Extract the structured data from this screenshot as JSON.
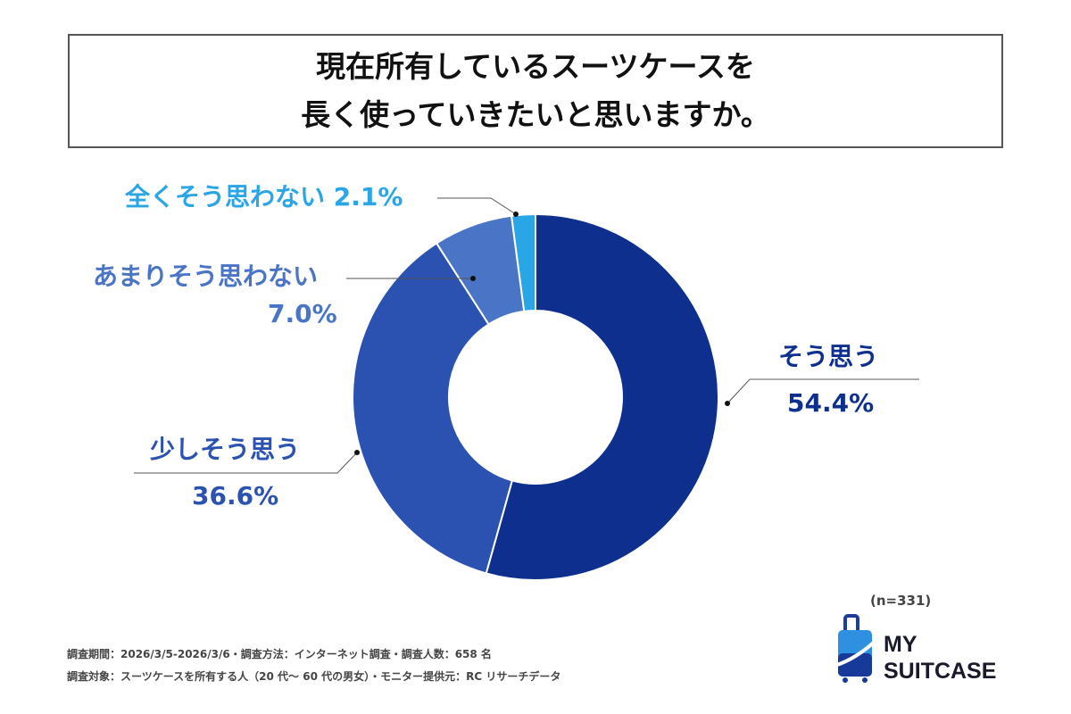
{
  "chart_data": {
    "type": "pie",
    "donut": true,
    "title_lines": [
      "現在所有しているスーツケースを",
      "長く使っていきたいと思いますか。"
    ],
    "slices": [
      {
        "label": "そう思う",
        "value": 54.4,
        "value_label": "54.4%",
        "color": "#0f2f8f"
      },
      {
        "label": "少しそう思う",
        "value": 36.6,
        "value_label": "36.6%",
        "color": "#2b52b1"
      },
      {
        "label": "あまりそう思わない",
        "value": 7.0,
        "value_label": "7.0%",
        "color": "#4a74c6"
      },
      {
        "label": "全くそう思わない",
        "value": 2.1,
        "value_label": "2.1%",
        "color": "#2aa6e6"
      }
    ],
    "sample_size": "(n=331)"
  },
  "footer": {
    "line1": "調査期間：2026/3/5-2026/3/6・調査方法：インターネット調査・調査人数：658 名",
    "line2": "調査対象：スーツケースを所有する人（20 代〜 60 代の男女）・モニター提供元：RC リサーチデータ"
  },
  "logo": {
    "line1": "MY",
    "line2": "SUITCASE"
  }
}
